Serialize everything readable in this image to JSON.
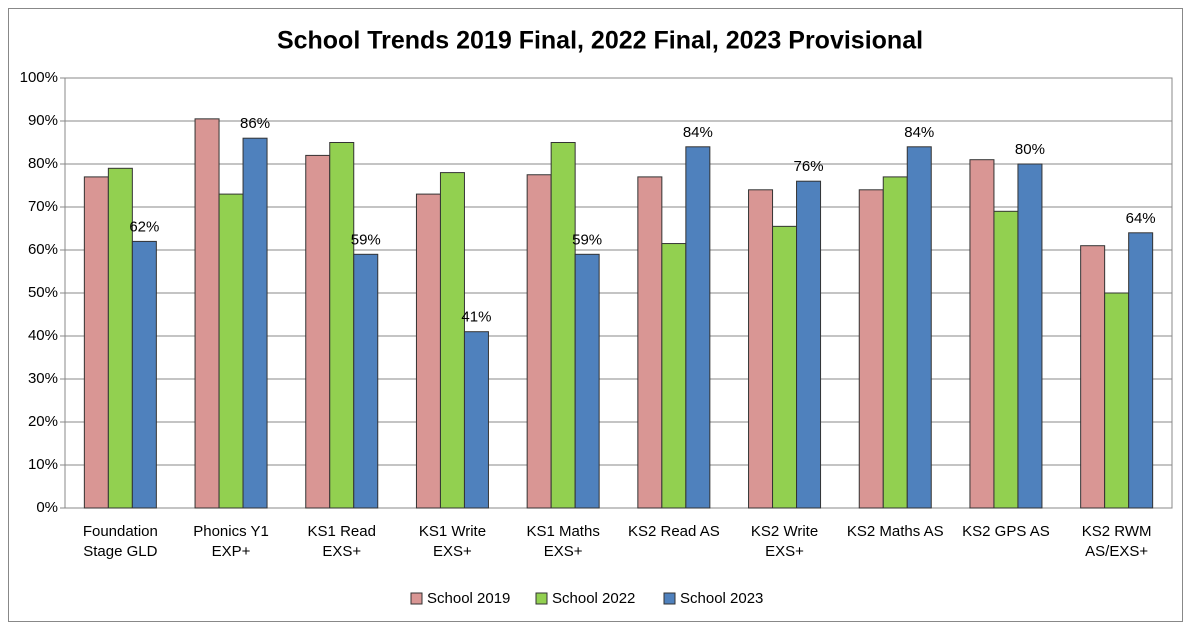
{
  "chart_data": {
    "type": "bar",
    "title": "School Trends 2019 Final, 2022 Final, 2023 Provisional",
    "categories": [
      "Foundation\nStage GLD",
      "Phonics Y1\nEXP+",
      "KS1 Read\nEXS+",
      "KS1 Write\nEXS+",
      "KS1 Maths\nEXS+",
      "KS2 Read   AS",
      "KS2 Write\nEXS+",
      "KS2 Maths AS",
      "KS2 GPS AS",
      "KS2 RWM\nAS/EXS+"
    ],
    "series": [
      {
        "name": "School 2019",
        "color": "#d99694",
        "values": [
          77,
          90.5,
          82,
          73,
          77.5,
          77,
          74,
          74,
          81,
          61
        ]
      },
      {
        "name": "School 2022",
        "color": "#92d050",
        "values": [
          79,
          73,
          85,
          78,
          85,
          61.5,
          65.5,
          77,
          69,
          50
        ]
      },
      {
        "name": "School 2023",
        "color": "#4f81bd",
        "values": [
          62,
          86,
          59,
          41,
          59,
          84,
          76,
          84,
          80,
          64
        ],
        "value_labels": [
          "62%",
          "86%",
          "59%",
          "41%",
          "59%",
          "84%",
          "76%",
          "84%",
          "80%",
          "64%"
        ]
      }
    ],
    "ylim": [
      0,
      100
    ],
    "yticks": [
      {
        "value": 0,
        "label": "0%"
      },
      {
        "value": 10,
        "label": "10%"
      },
      {
        "value": 20,
        "label": "20%"
      },
      {
        "value": 30,
        "label": "30%"
      },
      {
        "value": 40,
        "label": "40%"
      },
      {
        "value": 50,
        "label": "50%"
      },
      {
        "value": 60,
        "label": "60%"
      },
      {
        "value": 70,
        "label": "70%"
      },
      {
        "value": 80,
        "label": "80%"
      },
      {
        "value": 90,
        "label": "90%"
      },
      {
        "value": 100,
        "label": "100%"
      }
    ],
    "grid": true,
    "legend": "bottom"
  }
}
